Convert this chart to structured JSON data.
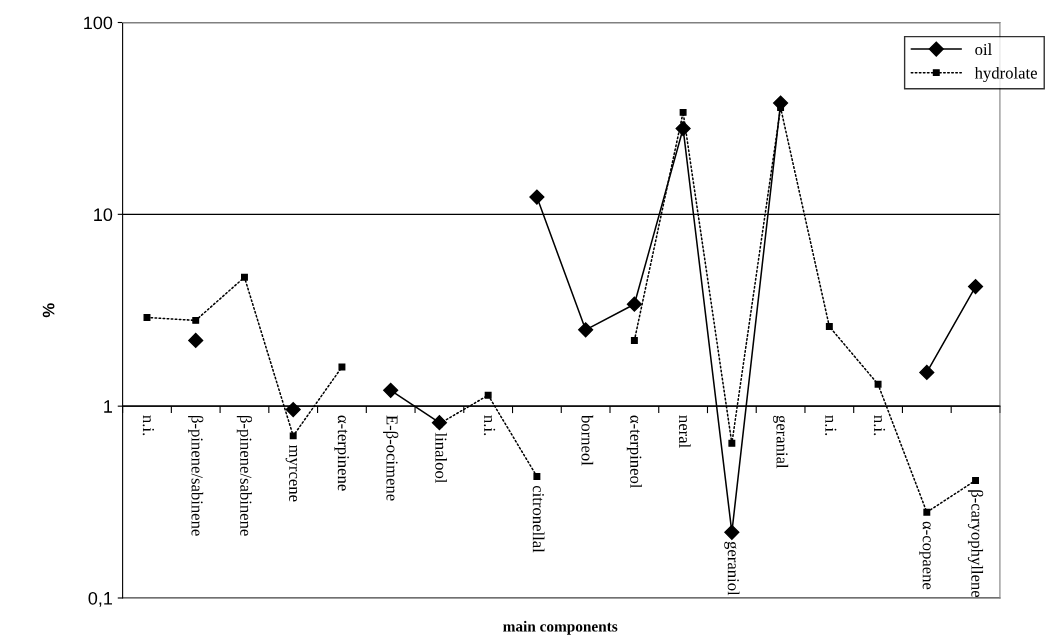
{
  "chart_data": {
    "type": "line",
    "xlabel": "main components",
    "ylabel": "%",
    "log": "y",
    "categories": [
      "n.i.",
      "β-pinene/sabinene",
      "β-pinene/sabinene",
      "myrcene",
      "α-terpinene",
      "E-β-ocimene",
      "linalool",
      "n.i.",
      "citronellal",
      "borneol",
      "α-terpineol",
      "neral",
      "geraniol",
      "geranial",
      "n.i.",
      "n.i.",
      "α-copaene",
      "β-caryophyllene"
    ],
    "series": [
      {
        "name": "oil",
        "color": "#000000",
        "marker": "diamond",
        "line_style": "solid",
        "values": [
          null,
          2.2,
          null,
          0.96,
          null,
          1.21,
          0.82,
          null,
          12.3,
          2.5,
          3.4,
          28,
          0.22,
          38,
          null,
          null,
          1.5,
          4.2
        ]
      },
      {
        "name": "hydrolate",
        "color": "#000000",
        "marker": "square",
        "line_style": "dotted",
        "values": [
          2.9,
          2.8,
          4.7,
          0.7,
          1.6,
          null,
          0.81,
          1.14,
          0.43,
          null,
          2.2,
          34,
          0.64,
          36,
          2.6,
          1.3,
          0.28,
          0.41
        ]
      }
    ],
    "ylim": [
      0.1,
      100
    ],
    "yticks": [
      {
        "value": 0.1,
        "label": "0,1"
      },
      1,
      10,
      100
    ],
    "grid": "y",
    "legend": "top right"
  }
}
